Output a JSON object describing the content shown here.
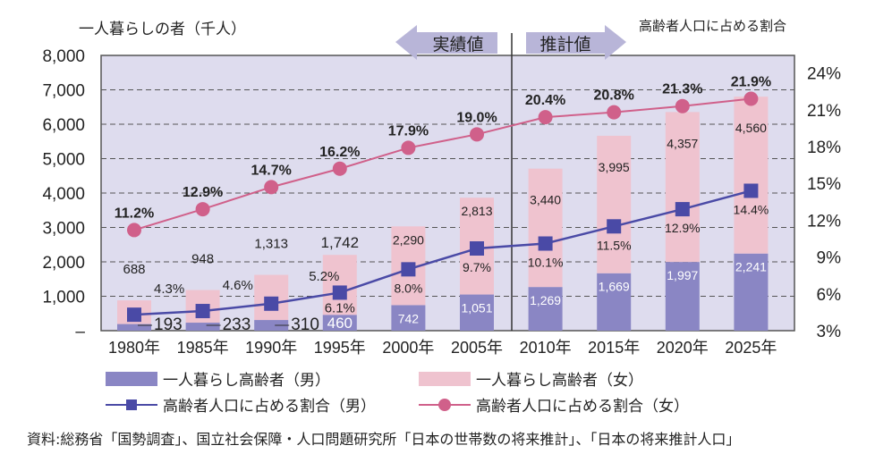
{
  "chart_data": {
    "type": "bar+line",
    "left_axis_title": "一人暮らしの者（千人）",
    "right_axis_title": "高齢者人口に占める割合",
    "categories": [
      "1980年",
      "1985年",
      "1990年",
      "1995年",
      "2000年",
      "2005年",
      "2010年",
      "2015年",
      "2020年",
      "2025年"
    ],
    "left_ticks": [
      "–",
      "1,000",
      "2,000",
      "3,000",
      "4,000",
      "5,000",
      "6,000",
      "7,000",
      "8,000"
    ],
    "right_ticks": [
      "3%",
      "6%",
      "9%",
      "12%",
      "15%",
      "18%",
      "21%",
      "24%"
    ],
    "ylim": [
      0,
      8000
    ],
    "y2lim": [
      3,
      26
    ],
    "actual_label": "実績値",
    "estimate_label": "推計値",
    "series": [
      {
        "name": "一人暮らし高齢者（男）",
        "type": "bar",
        "values": [
          193,
          233,
          310,
          460,
          742,
          1051,
          1269,
          1669,
          1997,
          2241
        ],
        "labels": [
          "193",
          "233",
          "310",
          "460",
          "742",
          "1,051",
          "1,269",
          "1,669",
          "1,997",
          "2,241"
        ],
        "color": "#8a86c4"
      },
      {
        "name": "一人暮らし高齢者（女）",
        "type": "bar",
        "values": [
          688,
          948,
          1313,
          1742,
          2290,
          2813,
          3440,
          3995,
          4357,
          4560
        ],
        "labels": [
          "688",
          "948",
          "1,313",
          "1,742",
          "2,290",
          "2,813",
          "3,440",
          "3,995",
          "4,357",
          "4,560"
        ],
        "color": "#efc3cf"
      },
      {
        "name": "高齢者人口に占める割合（男）",
        "type": "line",
        "values": [
          4.3,
          4.6,
          5.2,
          6.1,
          8.0,
          9.7,
          10.1,
          11.5,
          12.9,
          14.4
        ],
        "labels": [
          "4.3%",
          "4.6%",
          "5.2%",
          "6.1%",
          "8.0%",
          "9.7%",
          "10.1%",
          "11.5%",
          "12.9%",
          "14.4%"
        ],
        "color": "#4a4aa6"
      },
      {
        "name": "高齢者人口に占める割合（女）",
        "type": "line",
        "values": [
          11.2,
          12.9,
          14.7,
          16.2,
          17.9,
          19.0,
          20.4,
          20.8,
          21.3,
          21.9
        ],
        "labels": [
          "11.2%",
          "12.9%",
          "14.7%",
          "16.2%",
          "17.9%",
          "19.0%",
          "20.4%",
          "20.8%",
          "21.3%",
          "21.9%"
        ],
        "color": "#d0608a"
      }
    ],
    "source": "資料:総務省「国勢調査」、国立社会保障・人口問題研究所「日本の世帯数の将来推計」、「日本の将来推計人口」"
  }
}
